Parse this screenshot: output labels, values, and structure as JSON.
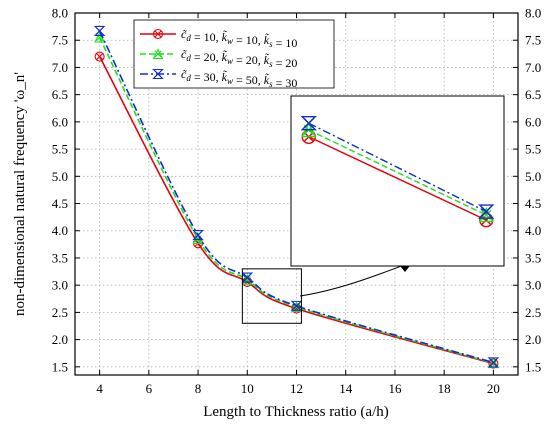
{
  "chart_data": {
    "type": "line",
    "xlabel": "Length to Thickness ratio (a/h)",
    "ylabel": "non-dimensional natural frequency 'ω_n'",
    "x_ticks": [
      4,
      6,
      8,
      10,
      12,
      14,
      16,
      18,
      20
    ],
    "y_ticks": [
      1.5,
      2.0,
      2.5,
      3.0,
      3.5,
      4.0,
      4.5,
      5.0,
      5.5,
      6.0,
      6.5,
      7.0,
      7.5,
      8.0
    ],
    "x_tick_labels": [
      "4",
      "6",
      "8",
      "10",
      "12",
      "14",
      "16",
      "18",
      "20"
    ],
    "y_tick_labels": [
      "1.5",
      "2.0",
      "2.5",
      "3.0",
      "3.5",
      "4.0",
      "4.5",
      "5.0",
      "5.5",
      "6.0",
      "6.5",
      "7.0",
      "7.5",
      "8.0"
    ],
    "xlim": [
      3,
      21
    ],
    "ylim": [
      1.35,
      8.0
    ],
    "grid": true,
    "legend_position": "top-left",
    "x": [
      4,
      8,
      10,
      12,
      20
    ],
    "series": [
      {
        "name": "c̃_d = 10, k̃_w = 10, k̃_s = 10",
        "values": [
          7.2,
          3.77,
          3.06,
          2.57,
          1.56
        ],
        "color": "#e8000b",
        "dash": "solid",
        "marker": "circle-x"
      },
      {
        "name": "c̃_d = 20, k̃_w = 20, k̃_s = 20",
        "values": [
          7.55,
          3.85,
          3.1,
          2.6,
          1.57
        ],
        "color": "#22dd22",
        "dash": "dash",
        "marker": "triangle-x"
      },
      {
        "name": "c̃_d = 30, k̃_w = 50, k̃_s = 30",
        "values": [
          7.67,
          3.92,
          3.14,
          2.62,
          1.58
        ],
        "color": "#1030c8",
        "dash": "dashdot",
        "marker": "bowtie-x"
      }
    ],
    "legend": [
      {
        "cd": "10",
        "kw": "10",
        "ks": "10"
      },
      {
        "cd": "20",
        "kw": "20",
        "ks": "20"
      },
      {
        "cd": "30",
        "kw": "50",
        "ks": "30"
      }
    ],
    "inset": {
      "zoom_xlim": [
        9.8,
        12.2
      ],
      "zoom_ylim": [
        2.3,
        3.3
      ]
    }
  }
}
